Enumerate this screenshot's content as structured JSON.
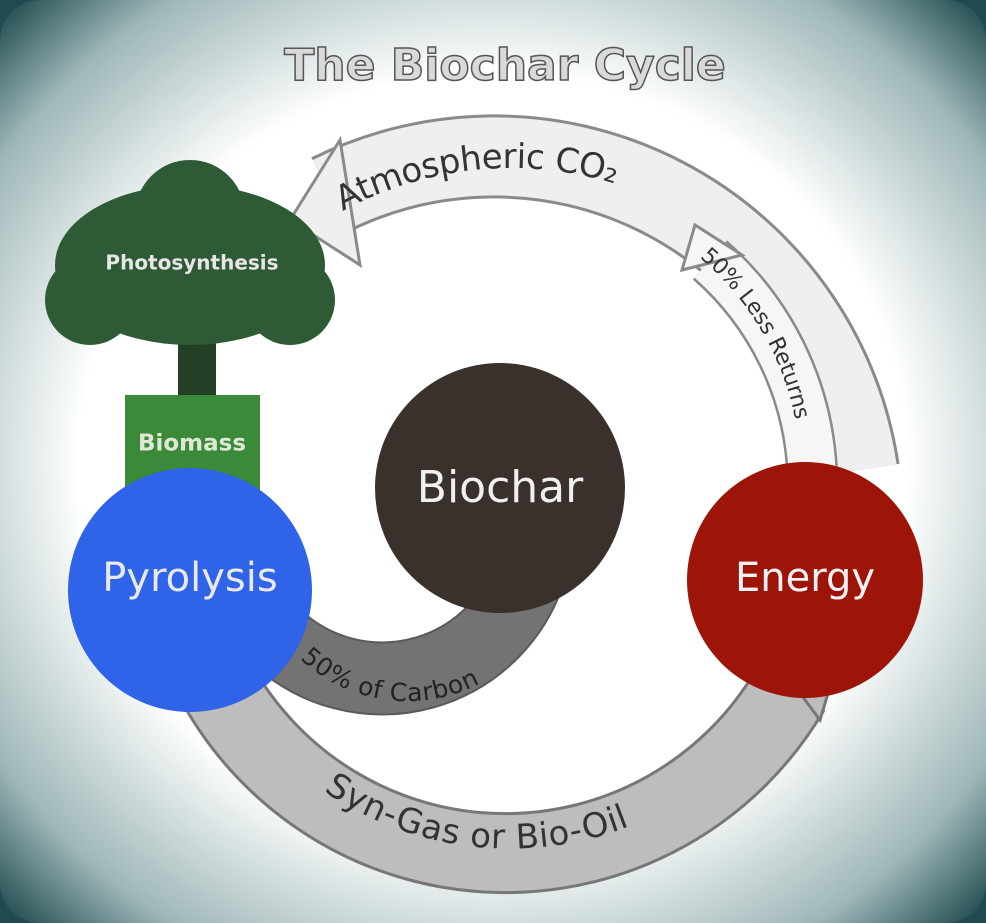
{
  "title": "The Biochar Cycle",
  "nodes": [
    {
      "label": "Photosynthesis"
    },
    {
      "label": "Biomass"
    },
    {
      "label": "Pyrolysis"
    },
    {
      "label": "Biochar"
    },
    {
      "label": "Energy"
    }
  ],
  "arrows": [
    {
      "label": "Atmospheric CO₂"
    },
    {
      "label": "50% Less Returns"
    },
    {
      "label": "50% of Carbon"
    },
    {
      "label": "Syn-Gas or Bio-Oil"
    }
  ]
}
